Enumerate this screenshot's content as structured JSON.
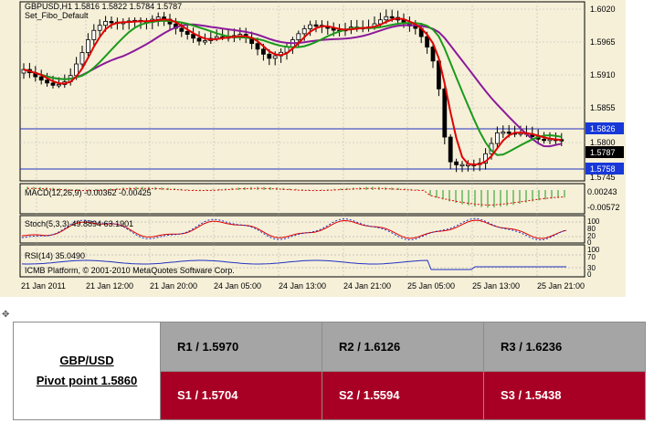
{
  "chart": {
    "header_line1": "GBPUSD,H1  1.5816 1.5822 1.5784 1.5787",
    "header_line2": "Set_Fibo_Default",
    "price_ticks": [
      "1.6020",
      "1.5965",
      "1.5910",
      "1.5855",
      "1.5800",
      "1.5745"
    ],
    "price_tags": [
      "1.5826",
      "1.5787",
      "1.5758"
    ],
    "macd_label": "MACD(12,26,9) -0.00362 -0.00425",
    "macd_ticks": [
      "0.00243",
      "-0.00572"
    ],
    "stoch_label": "Stoch(5,3,3) 49.8894 63.1901",
    "stoch_ticks": [
      "100",
      "80",
      "20",
      "0"
    ],
    "rsi_label": "RSI(14) 35.0490",
    "rsi_ticks": [
      "100",
      "70",
      "30",
      "0"
    ],
    "copyright": "ICMB Platform, © 2001-2010 MetaQuotes Software Corp.",
    "time_ticks": [
      "21 Jan 2011",
      "21 Jan 12:00",
      "21 Jan 20:00",
      "24 Jan 05:00",
      "24 Jan 13:00",
      "24 Jan 21:00",
      "25 Jan 05:00",
      "25 Jan 13:00",
      "25 Jan 21:00"
    ],
    "colors": {
      "background": "#f6f0d9",
      "fast_ma": "#e00000",
      "mid_ma": "#1a9a1a",
      "slow_ma": "#8b1a9a",
      "level_line": "#2030c0",
      "price_tag": "#1838d8"
    }
  },
  "table": {
    "pair": "GBP/USD",
    "pivot": "Pivot point 1.5860",
    "r1": "R1 / 1.5970",
    "r2": "R2 / 1.6126",
    "r3": "R3 / 1.6236",
    "s1": "S1 / 1.5704",
    "s2": "S2 / 1.5594",
    "s3": "S3 / 1.5438",
    "colors": {
      "resistance_bg": "#a5a5a5",
      "support_bg": "#a80024"
    }
  },
  "icons": {
    "move_handle": "move-cross-icon"
  }
}
